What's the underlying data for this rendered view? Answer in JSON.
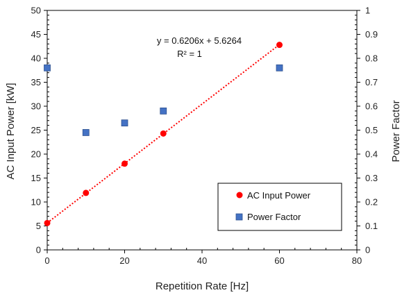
{
  "chart_data": {
    "type": "scatter",
    "x_axis": {
      "label": "Repetition Rate [Hz]",
      "min": 0,
      "max": 80,
      "step": 20,
      "ticks": [
        "0",
        "20",
        "40",
        "60",
        "80"
      ]
    },
    "y_axis_left": {
      "label": "AC Input Power [kW]",
      "min": 0,
      "max": 50,
      "step": 5,
      "ticks": [
        "0",
        "5",
        "10",
        "15",
        "20",
        "25",
        "30",
        "35",
        "40",
        "45",
        "50"
      ]
    },
    "y_axis_right": {
      "label": "Power Factor",
      "min": 0,
      "max": 1,
      "step": 0.1,
      "ticks": [
        "0",
        "0.1",
        "0.2",
        "0.3",
        "0.4",
        "0.5",
        "0.6",
        "0.7",
        "0.8",
        "0.9",
        "1"
      ]
    },
    "series": [
      {
        "name": "AC Input Power",
        "axis": "left",
        "marker": "circle",
        "color": "#ff0000",
        "x": [
          0,
          10,
          20,
          30,
          60
        ],
        "y": [
          5.6,
          11.9,
          18.0,
          24.3,
          42.8
        ]
      },
      {
        "name": "Power Factor",
        "axis": "right",
        "marker": "square",
        "color": "#4472c4",
        "x": [
          0,
          10,
          20,
          30,
          60
        ],
        "y": [
          0.76,
          0.49,
          0.53,
          0.58,
          0.76
        ]
      }
    ],
    "trendline": {
      "series": "AC Input Power",
      "type": "linear",
      "style": "dotted",
      "color": "#ff0000",
      "slope": 0.6206,
      "intercept": 5.6264,
      "x_range": [
        0,
        60
      ],
      "equation_label": "y = 0.6206x + 5.6264",
      "r2_label": "R² = 1"
    },
    "grid": false,
    "legend": {
      "position": "bottom-right"
    }
  }
}
